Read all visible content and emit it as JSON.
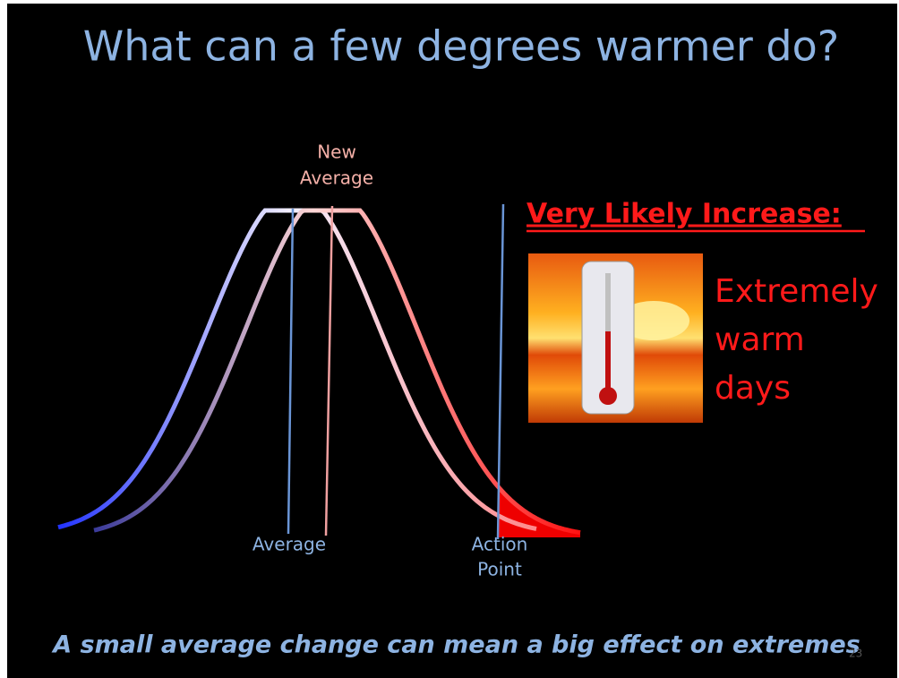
{
  "slide": {
    "title": "What can a few degrees warmer do?",
    "new_average_label": [
      "New",
      "Average"
    ],
    "average_label": "Average",
    "action_point_label": [
      "Action",
      "Point"
    ],
    "heading": "Very Likely Increase:",
    "extreme_text": [
      "Extremely",
      "warm",
      "days"
    ],
    "footer": "A small average change can mean a big effect on extremes",
    "slide_number": "23"
  }
}
